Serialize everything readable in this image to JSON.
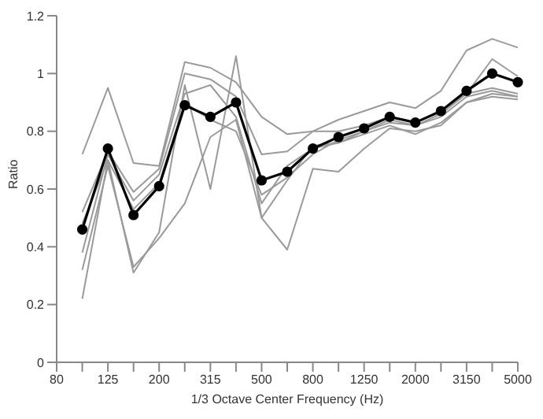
{
  "chart_data": {
    "type": "line",
    "xlabel": "1/3 Octave Center Frequency (Hz)",
    "ylabel": "Ratio",
    "categories": [
      "80",
      null,
      "125",
      null,
      "200",
      null,
      "315",
      null,
      "500",
      null,
      "800",
      null,
      "1250",
      null,
      "2000",
      null,
      "3150",
      null,
      "5000"
    ],
    "series": [
      {
        "color": "#9a9a9a",
        "marker": "none",
        "values": [
          null,
          0.72,
          0.95,
          0.69,
          0.68,
          1.04,
          1.02,
          0.97,
          0.85,
          0.79,
          0.8,
          0.84,
          0.87,
          0.9,
          0.88,
          0.94,
          1.08,
          1.12,
          1.09
        ]
      },
      {
        "color": "#9a9a9a",
        "marker": "none",
        "values": [
          null,
          0.22,
          0.7,
          0.31,
          0.45,
          0.96,
          0.6,
          1.06,
          0.5,
          0.39,
          0.67,
          0.66,
          0.74,
          0.81,
          0.8,
          0.82,
          0.9,
          0.92,
          0.91
        ]
      },
      {
        "color": "#9a9a9a",
        "marker": "none",
        "values": [
          null,
          0.32,
          0.68,
          0.33,
          0.43,
          0.55,
          0.78,
          0.84,
          0.5,
          0.63,
          0.75,
          0.76,
          0.79,
          0.82,
          0.79,
          0.83,
          0.9,
          0.93,
          0.92
        ]
      },
      {
        "color": "#9a9a9a",
        "marker": "none",
        "values": [
          null,
          0.52,
          0.73,
          0.59,
          0.67,
          1.0,
          0.98,
          0.92,
          0.72,
          0.73,
          0.8,
          0.8,
          0.82,
          0.85,
          0.83,
          0.87,
          0.93,
          1.05,
          0.99
        ]
      },
      {
        "color": "#9a9a9a",
        "marker": "none",
        "values": [
          null,
          0.38,
          0.72,
          0.56,
          0.65,
          0.93,
          0.96,
          0.85,
          0.55,
          0.68,
          0.74,
          0.76,
          0.8,
          0.83,
          0.82,
          0.86,
          0.93,
          0.95,
          0.93
        ]
      },
      {
        "color": "#9a9a9a",
        "marker": "none",
        "values": [
          null,
          0.48,
          0.7,
          0.53,
          0.62,
          0.9,
          0.84,
          0.8,
          0.58,
          0.64,
          0.72,
          0.77,
          0.8,
          0.84,
          0.82,
          0.85,
          0.92,
          0.94,
          0.92
        ]
      },
      {
        "color": "#000000",
        "marker": "circle",
        "values": [
          null,
          0.46,
          0.74,
          0.51,
          0.61,
          0.89,
          0.85,
          0.9,
          0.63,
          0.66,
          0.74,
          0.78,
          0.81,
          0.85,
          0.83,
          0.87,
          0.94,
          1.0,
          0.97
        ]
      }
    ],
    "ylim": [
      0,
      1.2
    ],
    "yticks": [
      0,
      0.2,
      0.4,
      0.6,
      0.8,
      1,
      1.2
    ],
    "grid": false,
    "legend": false
  }
}
